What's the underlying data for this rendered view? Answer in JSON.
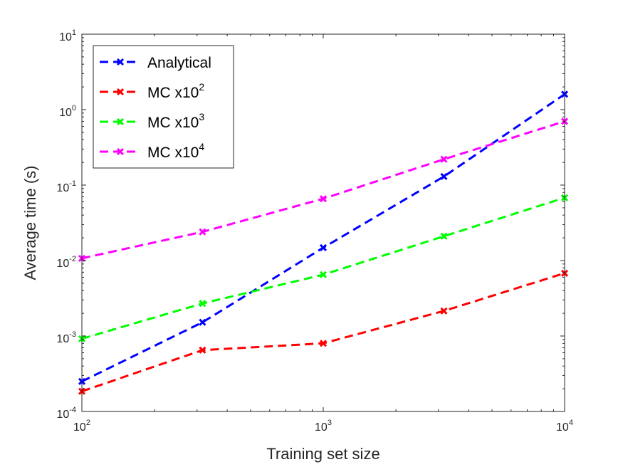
{
  "chart_data": {
    "type": "line",
    "x_scale": "log",
    "y_scale": "log",
    "xlabel": "Training set size",
    "ylabel": "Average time (s)",
    "xlim": [
      100,
      10000
    ],
    "ylim": [
      0.0001,
      10
    ],
    "x_ticks": [
      {
        "value": 100,
        "base": "10",
        "exp": "2"
      },
      {
        "value": 1000,
        "base": "10",
        "exp": "3"
      },
      {
        "value": 10000,
        "base": "10",
        "exp": "4"
      }
    ],
    "y_ticks": [
      {
        "value": 0.0001,
        "base": "10",
        "exp": "-4"
      },
      {
        "value": 0.001,
        "base": "10",
        "exp": "-3"
      },
      {
        "value": 0.01,
        "base": "10",
        "exp": "-2"
      },
      {
        "value": 0.1,
        "base": "10",
        "exp": "-1"
      },
      {
        "value": 1,
        "base": "10",
        "exp": "0"
      },
      {
        "value": 10,
        "base": "10",
        "exp": "1"
      }
    ],
    "x": [
      100,
      316,
      1000,
      3162,
      10000
    ],
    "legend_position": "top-left",
    "series": [
      {
        "name": "Analytical",
        "label_main": "Analytical",
        "label_sup": "",
        "color": "#0000ff",
        "values": [
          0.00025,
          0.00152,
          0.0148,
          0.13,
          1.6
        ]
      },
      {
        "name": "MC x10^2",
        "label_main": "MC x10",
        "label_sup": "2",
        "color": "#ff0000",
        "values": [
          0.000185,
          0.00065,
          0.0008,
          0.00215,
          0.0068
        ]
      },
      {
        "name": "MC x10^3",
        "label_main": "MC x10",
        "label_sup": "3",
        "color": "#00ff00",
        "values": [
          0.00092,
          0.0027,
          0.0065,
          0.021,
          0.068
        ]
      },
      {
        "name": "MC x10^4",
        "label_main": "MC x10",
        "label_sup": "4",
        "color": "#ff00ff",
        "values": [
          0.0107,
          0.024,
          0.066,
          0.22,
          0.7
        ]
      }
    ]
  }
}
